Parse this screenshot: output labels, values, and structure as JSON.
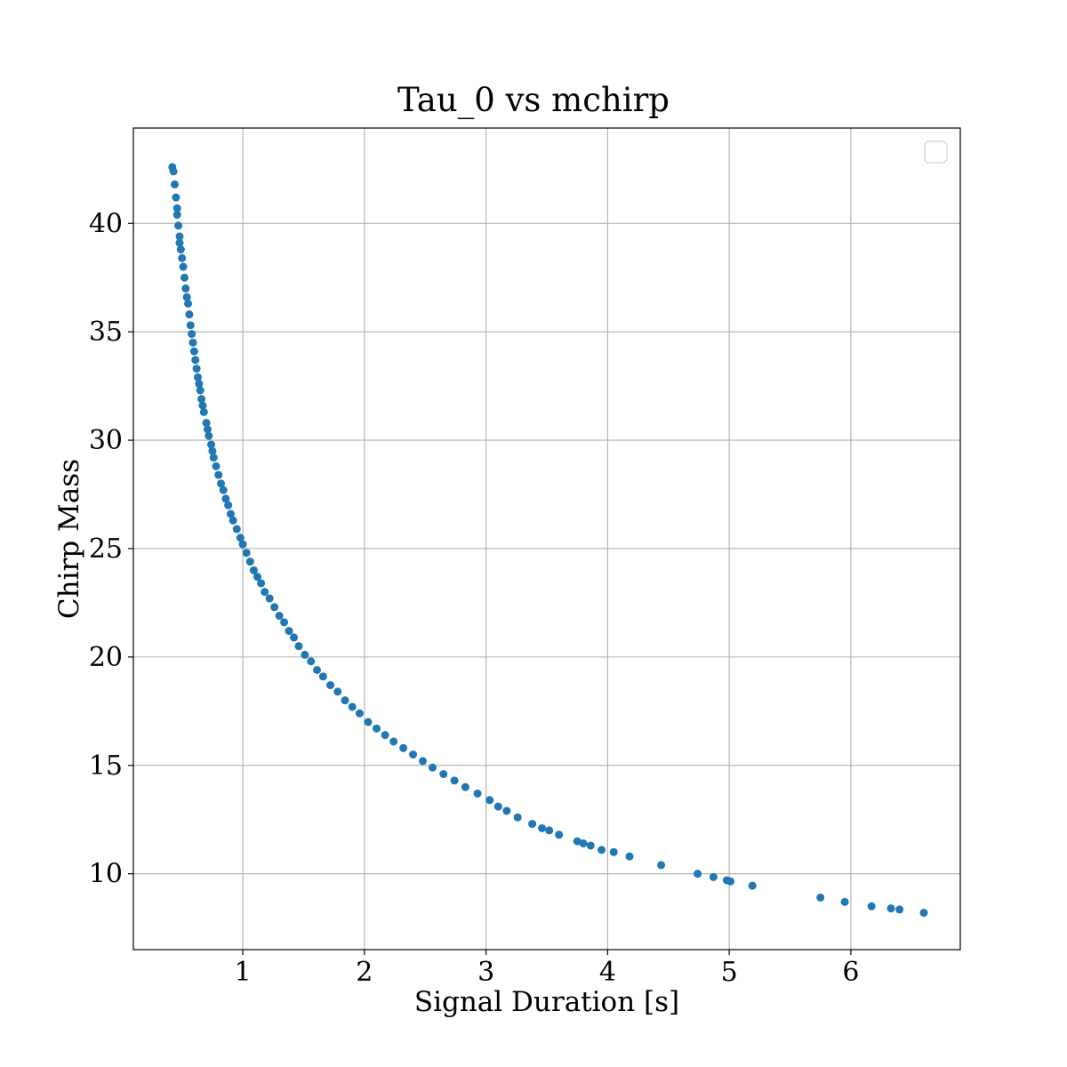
{
  "chart_data": {
    "type": "scatter",
    "title": "Tau_0 vs mchirp",
    "xlabel": "Signal Duration [s]",
    "ylabel": "Chirp Mass",
    "xlim": [
      0.1,
      6.9
    ],
    "ylim": [
      6.5,
      44.4
    ],
    "xticks": [
      1,
      2,
      3,
      4,
      5,
      6
    ],
    "yticks": [
      10,
      15,
      20,
      25,
      30,
      35,
      40
    ],
    "grid": true,
    "legend": "top-right",
    "legend_entries": [],
    "series": [
      {
        "color": "#1f77b4",
        "points": [
          [
            0.42,
            42.6
          ],
          [
            0.43,
            42.4
          ],
          [
            0.44,
            41.8
          ],
          [
            0.45,
            41.2
          ],
          [
            0.46,
            40.7
          ],
          [
            0.46,
            40.4
          ],
          [
            0.47,
            39.9
          ],
          [
            0.48,
            39.4
          ],
          [
            0.48,
            39.1
          ],
          [
            0.49,
            38.8
          ],
          [
            0.5,
            38.4
          ],
          [
            0.51,
            38.0
          ],
          [
            0.52,
            37.5
          ],
          [
            0.53,
            37.0
          ],
          [
            0.54,
            36.6
          ],
          [
            0.55,
            36.3
          ],
          [
            0.56,
            35.8
          ],
          [
            0.57,
            35.3
          ],
          [
            0.58,
            34.9
          ],
          [
            0.59,
            34.5
          ],
          [
            0.6,
            34.1
          ],
          [
            0.61,
            33.7
          ],
          [
            0.62,
            33.3
          ],
          [
            0.63,
            32.9
          ],
          [
            0.64,
            32.6
          ],
          [
            0.65,
            32.3
          ],
          [
            0.66,
            31.9
          ],
          [
            0.67,
            31.6
          ],
          [
            0.68,
            31.3
          ],
          [
            0.7,
            30.8
          ],
          [
            0.71,
            30.5
          ],
          [
            0.72,
            30.2
          ],
          [
            0.74,
            29.8
          ],
          [
            0.75,
            29.5
          ],
          [
            0.76,
            29.2
          ],
          [
            0.78,
            28.8
          ],
          [
            0.8,
            28.4
          ],
          [
            0.82,
            28.0
          ],
          [
            0.84,
            27.7
          ],
          [
            0.86,
            27.3
          ],
          [
            0.88,
            27.0
          ],
          [
            0.9,
            26.6
          ],
          [
            0.92,
            26.3
          ],
          [
            0.95,
            25.9
          ],
          [
            0.98,
            25.5
          ],
          [
            1.0,
            25.2
          ],
          [
            1.03,
            24.8
          ],
          [
            1.06,
            24.4
          ],
          [
            1.09,
            24.0
          ],
          [
            1.12,
            23.7
          ],
          [
            1.15,
            23.4
          ],
          [
            1.18,
            23.0
          ],
          [
            1.22,
            22.7
          ],
          [
            1.26,
            22.3
          ],
          [
            1.3,
            21.9
          ],
          [
            1.34,
            21.6
          ],
          [
            1.38,
            21.2
          ],
          [
            1.42,
            20.9
          ],
          [
            1.46,
            20.5
          ],
          [
            1.51,
            20.1
          ],
          [
            1.56,
            19.8
          ],
          [
            1.61,
            19.4
          ],
          [
            1.66,
            19.1
          ],
          [
            1.72,
            18.7
          ],
          [
            1.78,
            18.4
          ],
          [
            1.84,
            18.0
          ],
          [
            1.9,
            17.7
          ],
          [
            1.96,
            17.4
          ],
          [
            2.03,
            17.0
          ],
          [
            2.1,
            16.7
          ],
          [
            2.17,
            16.4
          ],
          [
            2.24,
            16.1
          ],
          [
            2.32,
            15.8
          ],
          [
            2.4,
            15.5
          ],
          [
            2.48,
            15.2
          ],
          [
            2.56,
            14.9
          ],
          [
            2.65,
            14.6
          ],
          [
            2.74,
            14.3
          ],
          [
            2.83,
            14.0
          ],
          [
            2.93,
            13.7
          ],
          [
            3.03,
            13.4
          ],
          [
            3.1,
            13.1
          ],
          [
            3.17,
            12.9
          ],
          [
            3.26,
            12.6
          ],
          [
            3.38,
            12.3
          ],
          [
            3.46,
            12.1
          ],
          [
            3.52,
            12.0
          ],
          [
            3.6,
            11.8
          ],
          [
            3.75,
            11.5
          ],
          [
            3.8,
            11.4
          ],
          [
            3.86,
            11.3
          ],
          [
            3.95,
            11.1
          ],
          [
            4.05,
            11.0
          ],
          [
            4.18,
            10.8
          ],
          [
            4.44,
            10.4
          ],
          [
            4.74,
            10.0
          ],
          [
            4.87,
            9.85
          ],
          [
            4.98,
            9.7
          ],
          [
            5.01,
            9.65
          ],
          [
            5.19,
            9.45
          ],
          [
            5.75,
            8.9
          ],
          [
            5.95,
            8.7
          ],
          [
            6.17,
            8.5
          ],
          [
            6.33,
            8.4
          ],
          [
            6.4,
            8.35
          ],
          [
            6.6,
            8.2
          ]
        ]
      }
    ]
  }
}
